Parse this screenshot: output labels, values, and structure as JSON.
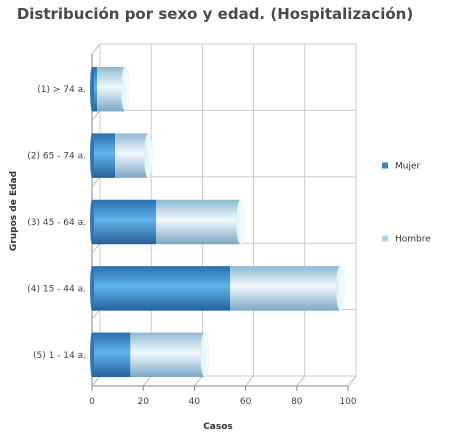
{
  "chart_data": {
    "type": "bar",
    "orientation": "horizontal",
    "stacked": true,
    "style": "3d-cylinder",
    "title": "Distribución por sexo y edad. (Hospitalización)",
    "xlabel": "Casos",
    "ylabel": "Grupos de Edad",
    "categories": [
      "(1) > 74 a.",
      "(2) 65 - 74 a.",
      "(3) 45 - 64 a.",
      "(4) 15 - 44 a.",
      "(5) 1 - 14 a."
    ],
    "series": [
      {
        "name": "Mujer",
        "values": [
          2,
          9,
          25,
          54,
          15
        ],
        "color": "#3a86c7"
      },
      {
        "name": "Hombre",
        "values": [
          11,
          13,
          33,
          43,
          29
        ],
        "color": "#a8d4ee"
      }
    ],
    "xlim": [
      0,
      100
    ],
    "xticks": [
      0,
      20,
      40,
      60,
      80,
      100
    ],
    "grid": true,
    "legend_position": "right"
  }
}
